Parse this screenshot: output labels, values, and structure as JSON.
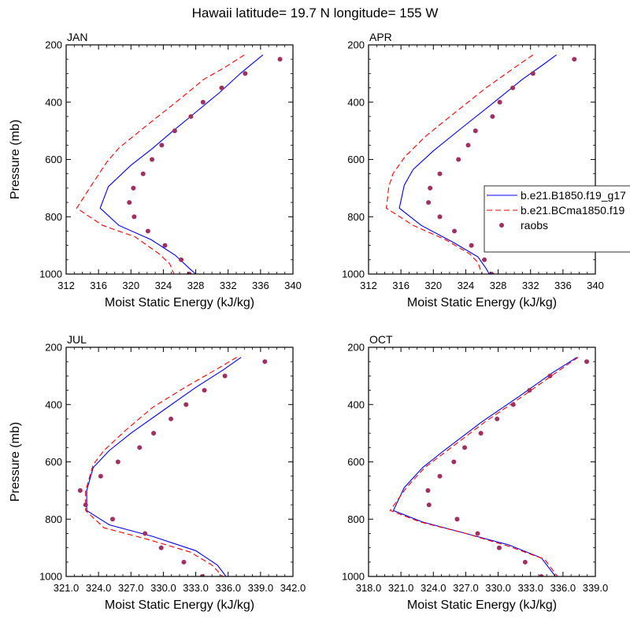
{
  "title": "Hawaii  latitude= 19.7 N longitude= 155 W",
  "legend": {
    "entries": [
      {
        "label": "b.e21.B1850.f19_g17",
        "color": "#0000ff",
        "style": "solid"
      },
      {
        "label": "b.e21.BCma1850.f19",
        "color": "#ff0000",
        "style": "dashed"
      },
      {
        "label": "raobs",
        "color": "#a03060",
        "style": "marker"
      }
    ]
  },
  "chart_data": [
    {
      "type": "line",
      "panel": "JAN",
      "title": "JAN",
      "xlabel": "Moist Static Energy (kJ/kg)",
      "ylabel": "Pressure (mb)",
      "xlim": [
        312,
        340
      ],
      "ylim": [
        200,
        1000
      ],
      "y_reversed": true,
      "xticks": [
        "312",
        "316",
        "320",
        "324",
        "328",
        "332",
        "336",
        "340"
      ],
      "yticks": [
        "200",
        "400",
        "600",
        "800",
        "1000"
      ],
      "series": [
        {
          "name": "b.e21.B1850.f19_g17",
          "color": "#0000ff",
          "style": "solid",
          "points": [
            [
              336.3,
              235
            ],
            [
              335,
              265
            ],
            [
              333.5,
              300
            ],
            [
              331,
              365
            ],
            [
              328,
              435
            ],
            [
              325,
              505
            ],
            [
              322.5,
              565
            ],
            [
              320,
              620
            ],
            [
              317.2,
              695
            ],
            [
              316.2,
              770
            ],
            [
              318.5,
              830
            ],
            [
              322.5,
              880
            ],
            [
              325.5,
              935
            ],
            [
              327.2,
              980
            ],
            [
              328.2,
              1005
            ]
          ]
        },
        {
          "name": "b.e21.BCma1850.f19",
          "color": "#ff0000",
          "style": "dashed",
          "points": [
            [
              334,
              235
            ],
            [
              331.5,
              280
            ],
            [
              329,
              320
            ],
            [
              326,
              390
            ],
            [
              322,
              480
            ],
            [
              318.5,
              560
            ],
            [
              317,
              610
            ],
            [
              315,
              695
            ],
            [
              313.3,
              770
            ],
            [
              316.5,
              830
            ],
            [
              320.5,
              870
            ],
            [
              323.5,
              930
            ],
            [
              324.8,
              965
            ],
            [
              325.3,
              1000
            ]
          ]
        },
        {
          "name": "raobs",
          "color": "#a03060",
          "style": "marker",
          "points": [
            [
              338.4,
              250
            ],
            [
              334.1,
              300
            ],
            [
              331.2,
              350
            ],
            [
              328.9,
              400
            ],
            [
              327.4,
              450
            ],
            [
              325.4,
              500
            ],
            [
              323.8,
              550
            ],
            [
              322.6,
              600
            ],
            [
              321.5,
              650
            ],
            [
              320.3,
              700
            ],
            [
              319.8,
              750
            ],
            [
              320.4,
              800
            ],
            [
              322.1,
              850
            ],
            [
              324.2,
              900
            ],
            [
              326.2,
              950
            ],
            [
              327.2,
              1000
            ]
          ]
        }
      ]
    },
    {
      "type": "line",
      "panel": "APR",
      "title": "APR",
      "xlabel": "Moist Static Energy (kJ/kg)",
      "ylabel": "",
      "xlim": [
        312,
        340
      ],
      "ylim": [
        200,
        1000
      ],
      "y_reversed": true,
      "xticks": [
        "312",
        "316",
        "320",
        "324",
        "328",
        "332",
        "336",
        "340"
      ],
      "yticks": [
        "200",
        "400",
        "600",
        "800",
        "1000"
      ],
      "series": [
        {
          "name": "b.e21.B1850.f19_g17",
          "color": "#0000ff",
          "style": "solid",
          "points": [
            [
              335.2,
              235
            ],
            [
              333.5,
              270
            ],
            [
              331,
              320
            ],
            [
              327.5,
              400
            ],
            [
              323.5,
              490
            ],
            [
              320,
              570
            ],
            [
              317.5,
              635
            ],
            [
              316.4,
              690
            ],
            [
              315.8,
              770
            ],
            [
              318.5,
              830
            ],
            [
              322.5,
              890
            ],
            [
              325.5,
              940
            ],
            [
              326.5,
              980
            ],
            [
              327,
              1005
            ]
          ]
        },
        {
          "name": "b.e21.BCma1850.f19",
          "color": "#ff0000",
          "style": "dashed",
          "points": [
            [
              332.3,
              235
            ],
            [
              330,
              280
            ],
            [
              326.5,
              350
            ],
            [
              322.5,
              440
            ],
            [
              319,
              520
            ],
            [
              316.5,
              590
            ],
            [
              315,
              650
            ],
            [
              314.5,
              695
            ],
            [
              314.2,
              770
            ],
            [
              317.5,
              830
            ],
            [
              321.5,
              880
            ],
            [
              324.5,
              930
            ],
            [
              325.5,
              960
            ],
            [
              326,
              1000
            ]
          ]
        },
        {
          "name": "raobs",
          "color": "#a03060",
          "style": "marker",
          "points": [
            [
              337.4,
              250
            ],
            [
              332.3,
              300
            ],
            [
              329.8,
              350
            ],
            [
              328.2,
              400
            ],
            [
              327.3,
              450
            ],
            [
              325.2,
              500
            ],
            [
              324.3,
              550
            ],
            [
              323.1,
              600
            ],
            [
              320.8,
              650
            ],
            [
              319.6,
              700
            ],
            [
              319.4,
              750
            ],
            [
              320.8,
              800
            ],
            [
              322.6,
              850
            ],
            [
              324.7,
              900
            ],
            [
              326.3,
              950
            ],
            [
              327.2,
              1000
            ]
          ]
        }
      ]
    },
    {
      "type": "line",
      "panel": "JUL",
      "title": "JUL",
      "xlabel": "Moist Static Energy (kJ/kg)",
      "ylabel": "Pressure (mb)",
      "xlim": [
        321,
        342
      ],
      "ylim": [
        200,
        1000
      ],
      "y_reversed": true,
      "xticks": [
        "321.0",
        "324.0",
        "327.0",
        "330.0",
        "333.0",
        "336.0",
        "339.0",
        "342.0"
      ],
      "yticks": [
        "200",
        "400",
        "600",
        "800",
        "1000"
      ],
      "series": [
        {
          "name": "b.e21.B1850.f19_g17",
          "color": "#0000ff",
          "style": "solid",
          "points": [
            [
              337.2,
              235
            ],
            [
              335.5,
              280
            ],
            [
              333,
              340
            ],
            [
              330,
              420
            ],
            [
              327,
              500
            ],
            [
              325,
              560
            ],
            [
              323.5,
              620
            ],
            [
              322.9,
              700
            ],
            [
              322.9,
              770
            ],
            [
              325,
              820
            ],
            [
              329,
              860
            ],
            [
              333,
              910
            ],
            [
              335,
              960
            ],
            [
              335.8,
              1000
            ]
          ]
        },
        {
          "name": "b.e21.BCma1850.f19",
          "color": "#ff0000",
          "style": "dashed",
          "points": [
            [
              336.8,
              235
            ],
            [
              335,
              275
            ],
            [
              332,
              340
            ],
            [
              329,
              410
            ],
            [
              326.5,
              490
            ],
            [
              324.5,
              560
            ],
            [
              323.5,
              610
            ],
            [
              322.8,
              700
            ],
            [
              322.8,
              770
            ],
            [
              324.5,
              830
            ],
            [
              328.5,
              870
            ],
            [
              332.5,
              915
            ],
            [
              334.5,
              960
            ],
            [
              335.5,
              1000
            ]
          ]
        },
        {
          "name": "raobs",
          "color": "#a03060",
          "style": "marker",
          "points": [
            [
              339.4,
              250
            ],
            [
              335.7,
              300
            ],
            [
              333.8,
              350
            ],
            [
              332.1,
              400
            ],
            [
              330.7,
              450
            ],
            [
              329.1,
              500
            ],
            [
              327.8,
              550
            ],
            [
              325.8,
              600
            ],
            [
              324.2,
              650
            ],
            [
              322.3,
              700
            ],
            [
              322.8,
              750
            ],
            [
              325.3,
              800
            ],
            [
              328.3,
              850
            ],
            [
              329.8,
              900
            ],
            [
              331.9,
              950
            ],
            [
              333.6,
              1000
            ]
          ]
        }
      ]
    },
    {
      "type": "line",
      "panel": "OCT",
      "title": "OCT",
      "xlabel": "Moist Static Energy (kJ/kg)",
      "ylabel": "",
      "xlim": [
        318,
        339
      ],
      "ylim": [
        200,
        1000
      ],
      "y_reversed": true,
      "xticks": [
        "318.0",
        "321.0",
        "324.0",
        "327.0",
        "330.0",
        "333.0",
        "336.0",
        "339.0"
      ],
      "yticks": [
        "200",
        "400",
        "600",
        "800",
        "1000"
      ],
      "series": [
        {
          "name": "b.e21.B1850.f19_g17",
          "color": "#0000ff",
          "style": "solid",
          "points": [
            [
              337.3,
              235
            ],
            [
              335,
              290
            ],
            [
              332,
              370
            ],
            [
              328.5,
              460
            ],
            [
              325,
              560
            ],
            [
              323,
              620
            ],
            [
              321.3,
              690
            ],
            [
              320.3,
              770
            ],
            [
              323,
              810
            ],
            [
              327,
              850
            ],
            [
              331,
              890
            ],
            [
              334,
              935
            ],
            [
              335.3,
              1000
            ]
          ]
        },
        {
          "name": "b.e21.BCma1850.f19",
          "color": "#ff0000",
          "style": "dashed",
          "points": [
            [
              337.4,
              235
            ],
            [
              335.3,
              290
            ],
            [
              332.3,
              370
            ],
            [
              328.8,
              460
            ],
            [
              325.3,
              560
            ],
            [
              323.2,
              620
            ],
            [
              321.5,
              690
            ],
            [
              320,
              770
            ],
            [
              322.8,
              810
            ],
            [
              327,
              850
            ],
            [
              331,
              895
            ],
            [
              334.3,
              940
            ],
            [
              335.5,
              1000
            ]
          ]
        },
        {
          "name": "raobs",
          "color": "#a03060",
          "style": "marker",
          "points": [
            [
              338.2,
              250
            ],
            [
              334.8,
              300
            ],
            [
              332.9,
              350
            ],
            [
              331.4,
              400
            ],
            [
              329.9,
              450
            ],
            [
              328.4,
              500
            ],
            [
              326.9,
              550
            ],
            [
              325.9,
              600
            ],
            [
              324.6,
              650
            ],
            [
              323.5,
              700
            ],
            [
              323.6,
              750
            ],
            [
              326.2,
              800
            ],
            [
              328.1,
              850
            ],
            [
              330.1,
              900
            ],
            [
              332.5,
              950
            ],
            [
              334,
              1000
            ]
          ]
        }
      ]
    }
  ]
}
